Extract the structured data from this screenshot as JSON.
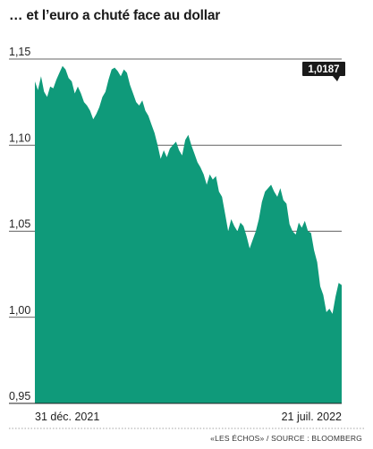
{
  "chart_data": {
    "type": "area",
    "title": "… et l’euro a chuté face au dollar",
    "source": "«LES ÉCHOS» / SOURCE : BLOOMBERG",
    "x_start_label": "31 déc. 2021",
    "x_end_label": "21 juil. 2022",
    "y_ticks": [
      "1,15",
      "1,10",
      "1,05",
      "1,00",
      "0,95"
    ],
    "ylim": [
      0.95,
      1.15
    ],
    "grid": true,
    "last_value_label": "1,0187",
    "colors": {
      "area": "#0f9a7a",
      "grid": "#333333",
      "badge": "#1a1a1a"
    },
    "series": [
      {
        "values": [
          1.137,
          1.132,
          1.14,
          1.131,
          1.128,
          1.134,
          1.133,
          1.138,
          1.142,
          1.146,
          1.144,
          1.139,
          1.137,
          1.13,
          1.134,
          1.13,
          1.125,
          1.123,
          1.12,
          1.115,
          1.118,
          1.122,
          1.128,
          1.131,
          1.138,
          1.144,
          1.145,
          1.143,
          1.14,
          1.144,
          1.142,
          1.135,
          1.13,
          1.125,
          1.123,
          1.126,
          1.12,
          1.117,
          1.112,
          1.107,
          1.1,
          1.092,
          1.097,
          1.093,
          1.098,
          1.1,
          1.102,
          1.097,
          1.094,
          1.103,
          1.106,
          1.1,
          1.095,
          1.09,
          1.087,
          1.083,
          1.077,
          1.083,
          1.08,
          1.082,
          1.073,
          1.07,
          1.06,
          1.05,
          1.057,
          1.053,
          1.05,
          1.055,
          1.053,
          1.047,
          1.04,
          1.045,
          1.05,
          1.057,
          1.067,
          1.073,
          1.075,
          1.077,
          1.073,
          1.07,
          1.075,
          1.068,
          1.066,
          1.054,
          1.05,
          1.048,
          1.055,
          1.052,
          1.056,
          1.05,
          1.049,
          1.039,
          1.032,
          1.018,
          1.013,
          1.003,
          1.005,
          1.002,
          1.012,
          1.02,
          1.0187
        ]
      }
    ]
  }
}
